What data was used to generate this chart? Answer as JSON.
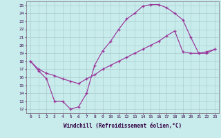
{
  "xlabel": "Windchill (Refroidissement éolien,°C)",
  "xlim": [
    -0.5,
    23.5
  ],
  "ylim": [
    11.5,
    25.5
  ],
  "xticks": [
    0,
    1,
    2,
    3,
    4,
    5,
    6,
    7,
    8,
    9,
    10,
    11,
    12,
    13,
    14,
    15,
    16,
    17,
    18,
    19,
    20,
    21,
    22,
    23
  ],
  "yticks": [
    12,
    13,
    14,
    15,
    16,
    17,
    18,
    19,
    20,
    21,
    22,
    23,
    24,
    25
  ],
  "bg_color": "#c8ecec",
  "grid_color": "#aacccc",
  "line_color": "#993399",
  "line1_x": [
    0,
    1,
    2,
    3,
    4,
    5,
    6,
    7,
    8,
    9,
    10,
    11,
    12,
    13,
    14,
    15,
    16,
    17,
    18,
    19,
    20,
    21,
    22,
    23
  ],
  "line1_y": [
    18.0,
    16.8,
    15.8,
    13.0,
    13.0,
    12.0,
    12.3,
    14.0,
    17.5,
    19.3,
    20.5,
    22.0,
    23.3,
    24.0,
    24.9,
    25.1,
    25.1,
    24.7,
    24.0,
    23.2,
    21.0,
    19.0,
    19.0,
    19.5
  ],
  "line2_x": [
    0,
    1,
    2,
    3,
    4,
    5,
    6,
    7,
    8,
    9,
    10,
    11,
    12,
    13,
    14,
    15,
    16,
    17,
    18,
    19,
    20,
    21,
    22,
    23
  ],
  "line2_y": [
    18.0,
    17.0,
    16.5,
    16.2,
    15.8,
    15.5,
    15.2,
    15.8,
    16.3,
    17.0,
    17.5,
    18.0,
    18.5,
    19.0,
    19.5,
    20.0,
    20.5,
    21.2,
    21.8,
    19.2,
    19.0,
    19.0,
    19.2,
    19.5
  ]
}
